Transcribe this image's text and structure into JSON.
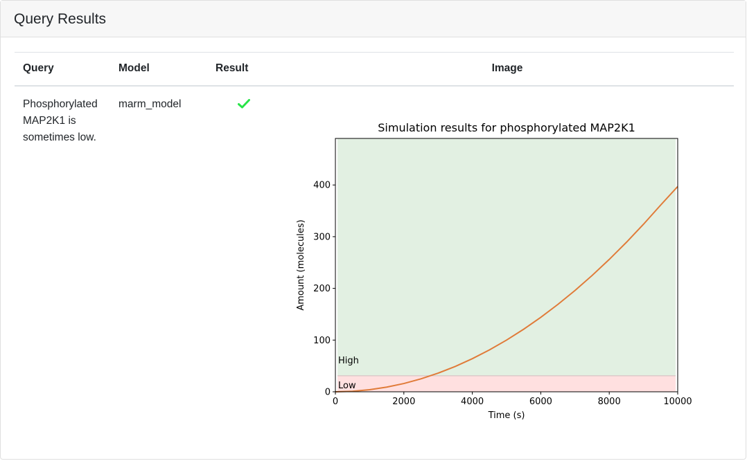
{
  "page": {
    "title": "Query Results"
  },
  "table": {
    "headers": {
      "query": "Query",
      "model": "Model",
      "result": "Result",
      "image": "Image"
    },
    "rows": [
      {
        "query": "Phosphorylated MAP2K1 is sometimes low.",
        "model": "marm_model",
        "result_icon": "checkmark-icon",
        "result_passed": true
      }
    ]
  },
  "colors": {
    "check": "#28e448",
    "line": "#e07b39",
    "high_region": "#e2f0e2",
    "low_region": "#ffe0e0",
    "threshold_line": "#d8c4c4"
  },
  "chart_data": {
    "type": "line",
    "title": "Simulation results for phosphorylated MAP2K1",
    "xlabel": "Time (s)",
    "ylabel": "Amount (molecules)",
    "xlim": [
      0,
      10000
    ],
    "ylim": [
      0,
      490
    ],
    "xticks": [
      0,
      2000,
      4000,
      6000,
      8000,
      10000
    ],
    "yticks": [
      0,
      100,
      200,
      300,
      400
    ],
    "regions": [
      {
        "label": "High",
        "from": 31,
        "to": 490
      },
      {
        "label": "Low",
        "from": 0,
        "to": 31
      }
    ],
    "threshold": 31,
    "series": [
      {
        "x": [
          0,
          500,
          1000,
          1500,
          2000,
          2500,
          3000,
          3500,
          4000,
          4500,
          5000,
          5500,
          6000,
          6500,
          7000,
          7500,
          8000,
          8500,
          9000,
          9500,
          10000
        ],
        "y": [
          0,
          1,
          4,
          9,
          16,
          25,
          36,
          49,
          64,
          81,
          100,
          121,
          144,
          169,
          196,
          225,
          256,
          289,
          324,
          361,
          397
        ]
      }
    ]
  }
}
